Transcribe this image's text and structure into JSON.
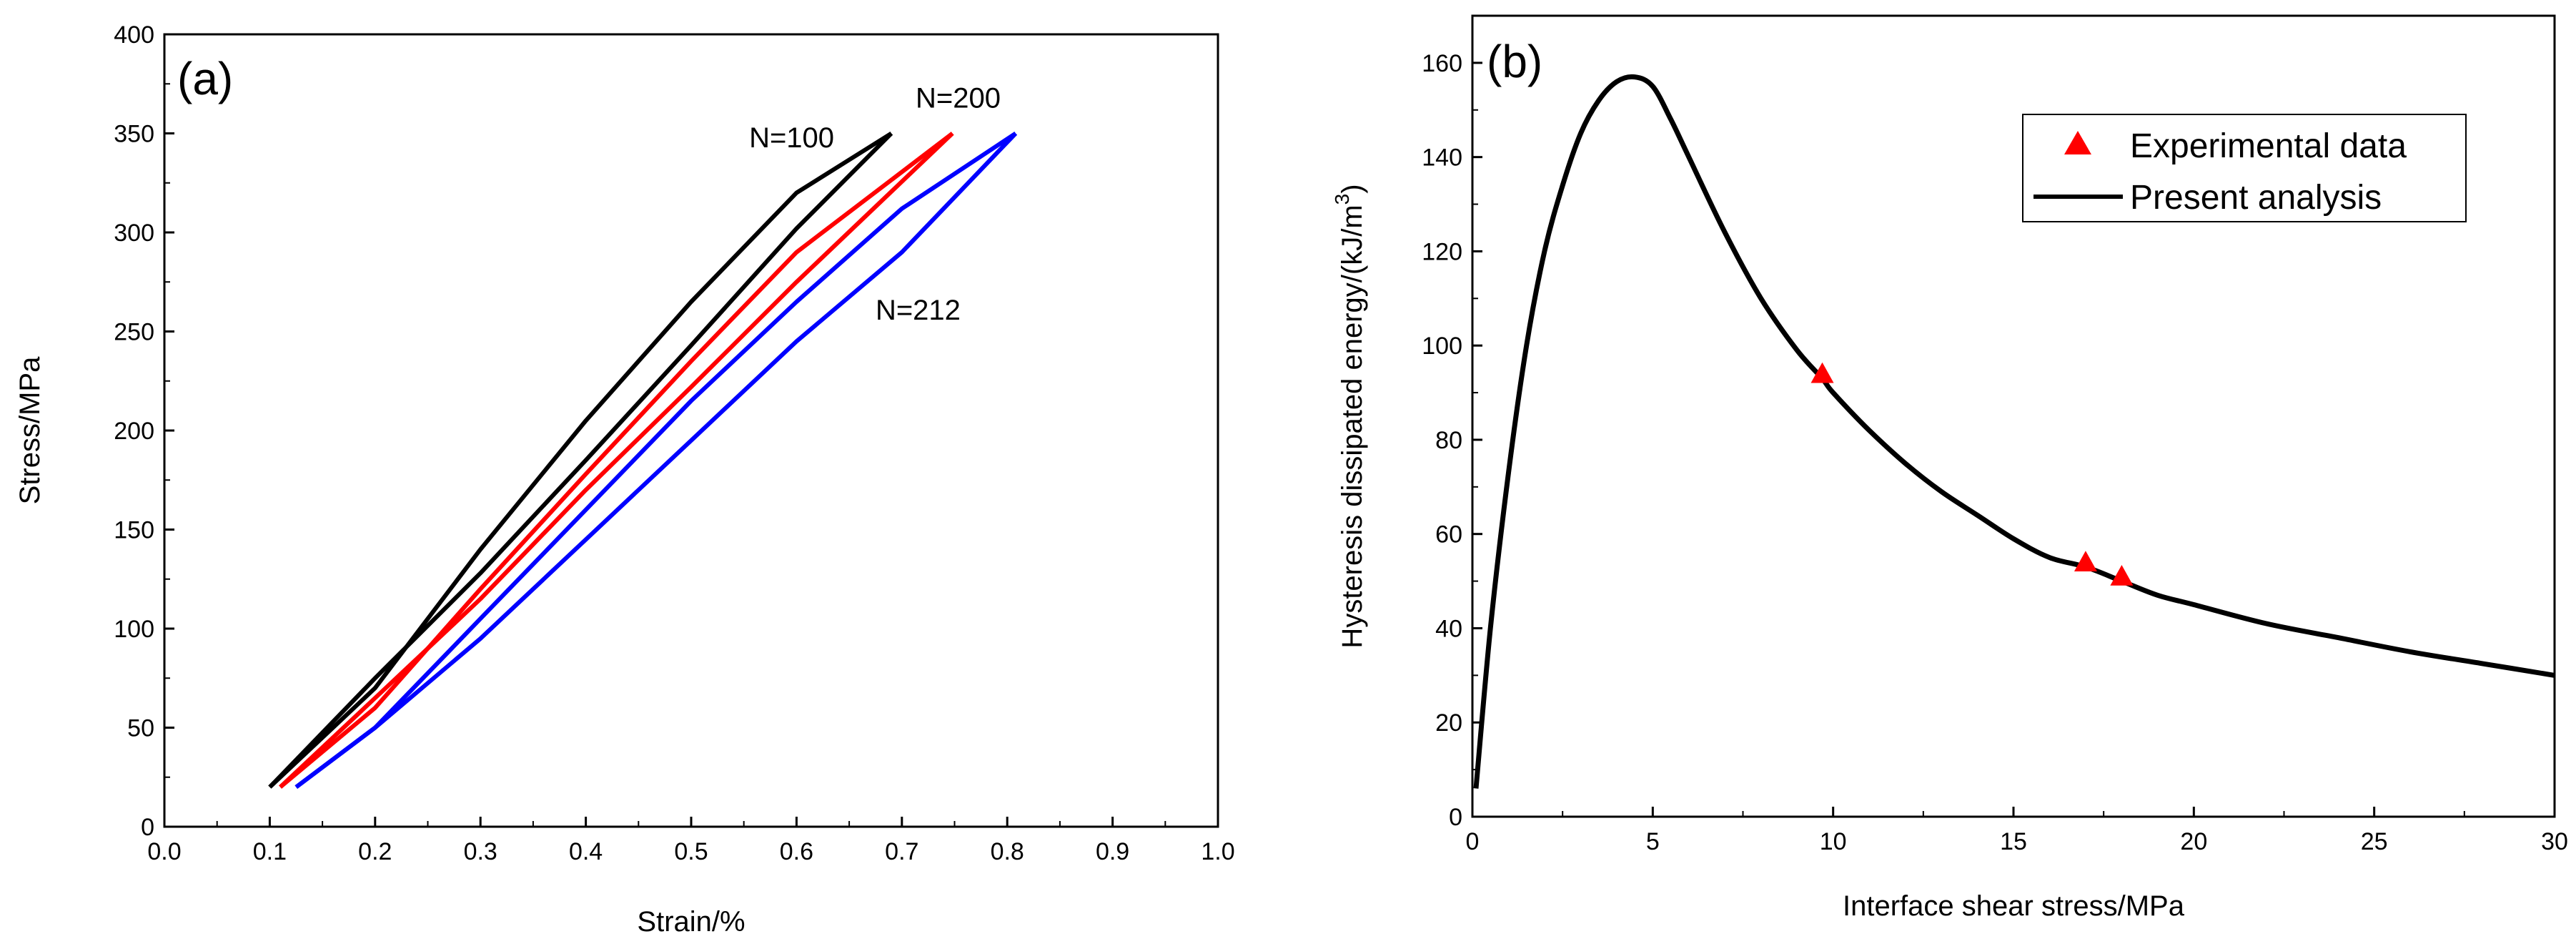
{
  "chart_data": [
    {
      "type": "line",
      "panel_label": "(a)",
      "xlabel": "Strain/%",
      "ylabel": "Stress/MPa",
      "xlim": [
        0.0,
        1.0
      ],
      "ylim": [
        0,
        400
      ],
      "xticks": [
        "0.0",
        "0.1",
        "0.2",
        "0.3",
        "0.4",
        "0.5",
        "0.6",
        "0.7",
        "0.8",
        "0.9",
        "1.0"
      ],
      "yticks": [
        "0",
        "50",
        "100",
        "150",
        "200",
        "250",
        "300",
        "350",
        "400"
      ],
      "grid": false,
      "colors": {
        "N=100": "#000000",
        "N=200": "#ff0000",
        "N=212": "#0000ff"
      },
      "series": [
        {
          "name": "N=100",
          "color": "#000000",
          "loading": {
            "x": [
              0.1,
              0.2,
              0.3,
              0.4,
              0.5,
              0.6,
              0.69
            ],
            "y": [
              20,
              70,
              140,
              205,
              265,
              320,
              350
            ]
          },
          "unloading": {
            "x": [
              0.69,
              0.6,
              0.5,
              0.4,
              0.3,
              0.2,
              0.1
            ],
            "y": [
              350,
              302,
              243,
              185,
              128,
              75,
              20
            ]
          }
        },
        {
          "name": "N=200",
          "color": "#ff0000",
          "loading": {
            "x": [
              0.11,
              0.2,
              0.3,
              0.4,
              0.5,
              0.6,
              0.748
            ],
            "y": [
              20,
              60,
              120,
              178,
              235,
              290,
              350
            ]
          },
          "unloading": {
            "x": [
              0.748,
              0.6,
              0.5,
              0.4,
              0.3,
              0.2,
              0.11
            ],
            "y": [
              350,
              275,
              222,
              170,
              115,
              65,
              20
            ]
          }
        },
        {
          "name": "N=212",
          "color": "#0000ff",
          "loading": {
            "x": [
              0.125,
              0.2,
              0.3,
              0.4,
              0.5,
              0.6,
              0.7,
              0.808
            ],
            "y": [
              20,
              50,
              105,
              160,
              215,
              265,
              312,
              350
            ]
          },
          "unloading": {
            "x": [
              0.808,
              0.7,
              0.6,
              0.5,
              0.4,
              0.3,
              0.2,
              0.125
            ],
            "y": [
              350,
              290,
              245,
              195,
              145,
              95,
              50,
              20
            ]
          }
        }
      ],
      "annotations": [
        {
          "text": "N=100",
          "x": 0.555,
          "y": 343
        },
        {
          "text": "N=200",
          "x": 0.713,
          "y": 363
        },
        {
          "text": "N=212",
          "x": 0.675,
          "y": 256
        }
      ]
    },
    {
      "type": "line",
      "panel_label": "(b)",
      "xlabel": "Interface shear stress/MPa",
      "ylabel_main": "Hysteresis dissipated energy/(kJ/m",
      "ylabel_sup": "3",
      "ylabel_end": ")",
      "xlim": [
        0,
        30
      ],
      "ylim": [
        0,
        170
      ],
      "xticks": [
        "0",
        "5",
        "10",
        "15",
        "20",
        "25",
        "30"
      ],
      "yticks": [
        "0",
        "20",
        "40",
        "60",
        "80",
        "100",
        "120",
        "140",
        "160"
      ],
      "grid": false,
      "legend_position": "top-right",
      "legend": [
        "Experimental data",
        "Present analysis"
      ],
      "colors": {
        "experimental": "#ff0000",
        "analysis": "#000000"
      },
      "series": [
        {
          "name": "Present analysis",
          "color": "#000000",
          "x": [
            0.1,
            0.5,
            1.0,
            1.5,
            2.0,
            2.5,
            3.0,
            3.5,
            4.0,
            4.5,
            5.0,
            5.5,
            6.0,
            7.0,
            8.0,
            9.0,
            9.7,
            10.0,
            11.0,
            12.0,
            13.0,
            14.0,
            15.0,
            16.0,
            17.0,
            18.0,
            19.0,
            20.0,
            22.0,
            24.0,
            26.0,
            28.0,
            30.0
          ],
          "y": [
            6,
            40,
            73,
            100,
            120,
            134,
            145,
            152,
            156,
            157,
            155,
            148,
            140,
            124,
            110,
            99,
            93,
            90,
            82,
            75,
            69,
            64,
            59,
            55,
            53,
            50,
            47,
            45,
            41,
            38,
            35,
            32.5,
            30
          ]
        },
        {
          "name": "Experimental data",
          "color": "#ff0000",
          "marker": "triangle",
          "x": [
            9.7,
            17.0,
            18.0
          ],
          "y": [
            94,
            54,
            51
          ]
        }
      ]
    }
  ]
}
